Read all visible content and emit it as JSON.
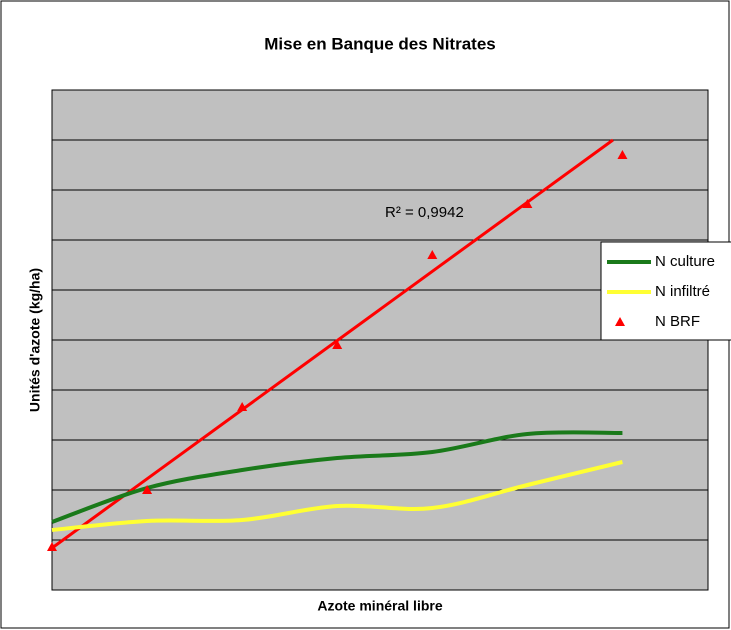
{
  "chart_data": {
    "type": "line",
    "title": "Mise en Banque des Nitrates",
    "xlabel": "Azote minéral libre",
    "ylabel": "Unités d'azote (kg/ha)",
    "x": [
      0,
      1,
      2,
      3,
      4,
      5,
      6
    ],
    "xlim": [
      0,
      6.9
    ],
    "ylim": [
      0,
      10
    ],
    "yticks": [
      1,
      2,
      3,
      4,
      5,
      6,
      7,
      8,
      9
    ],
    "grid": true,
    "legend": "right",
    "series": [
      {
        "name": "N culture",
        "color": "#1a7a1a",
        "style": "smooth-line",
        "values": [
          1.36,
          2.04,
          2.4,
          2.64,
          2.76,
          3.12,
          3.14
        ]
      },
      {
        "name": "N infiltré",
        "color": "#ffff33",
        "style": "smooth-line",
        "values": [
          1.2,
          1.38,
          1.4,
          1.68,
          1.64,
          2.1,
          2.56
        ]
      },
      {
        "name": "N BRF",
        "color": "#ff0000",
        "style": "triangle",
        "values": [
          0.86,
          2.0,
          3.66,
          4.9,
          6.7,
          7.72,
          8.7
        ]
      }
    ],
    "trendline": {
      "x": [
        0,
        5.9
      ],
      "values": [
        0.84,
        9.0
      ],
      "color": "#ff0000",
      "label": "R² = 0,9942"
    }
  }
}
